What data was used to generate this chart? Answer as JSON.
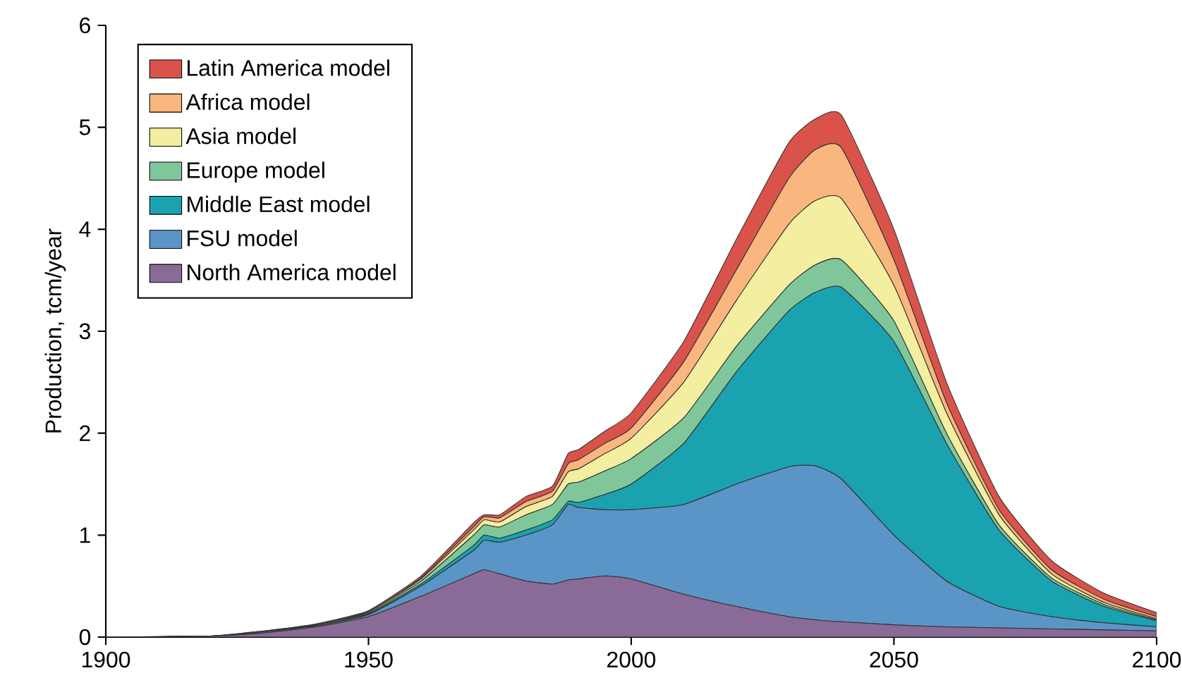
{
  "chart_data": {
    "type": "area",
    "stacked": true,
    "ylabel": "Production, tcm/year",
    "legend": "top left",
    "x": [
      1900,
      1920,
      1930,
      1940,
      1950,
      1960,
      1970,
      1972,
      1975,
      1980,
      1985,
      1988,
      1990,
      1995,
      2000,
      2010,
      2020,
      2030,
      2035,
      2040,
      2050,
      2060,
      2070,
      2080,
      2090,
      2100
    ],
    "xlim": [
      1900,
      2100
    ],
    "xticks": [
      1900,
      1950,
      2000,
      2050,
      2100
    ],
    "ylim": [
      0,
      6
    ],
    "yticks": [
      0,
      1,
      2,
      3,
      4,
      5,
      6
    ],
    "series": [
      {
        "name": "North America model",
        "color": "#8a6a96",
        "values": [
          0,
          0.01,
          0.04,
          0.1,
          0.2,
          0.4,
          0.62,
          0.66,
          0.62,
          0.55,
          0.52,
          0.56,
          0.57,
          0.6,
          0.57,
          0.42,
          0.3,
          0.2,
          0.17,
          0.15,
          0.12,
          0.1,
          0.09,
          0.08,
          0.07,
          0.06
        ]
      },
      {
        "name": "FSU model",
        "color": "#5b95c8",
        "values": [
          0,
          0,
          0.01,
          0.01,
          0.02,
          0.1,
          0.23,
          0.29,
          0.31,
          0.45,
          0.58,
          0.74,
          0.7,
          0.65,
          0.68,
          0.88,
          1.2,
          1.47,
          1.51,
          1.4,
          0.88,
          0.45,
          0.21,
          0.12,
          0.07,
          0.04
        ]
      },
      {
        "name": "Middle East model",
        "color": "#1aa2b0",
        "values": [
          0,
          0,
          0,
          0,
          0.01,
          0.02,
          0.05,
          0.05,
          0.04,
          0.05,
          0.05,
          0.03,
          0.05,
          0.15,
          0.25,
          0.6,
          1.1,
          1.53,
          1.7,
          1.88,
          1.9,
          1.35,
          0.75,
          0.35,
          0.16,
          0.06
        ]
      },
      {
        "name": "Europe model",
        "color": "#7fc79a",
        "values": [
          0,
          0,
          0,
          0.01,
          0.01,
          0.03,
          0.1,
          0.1,
          0.11,
          0.15,
          0.15,
          0.17,
          0.2,
          0.23,
          0.25,
          0.25,
          0.25,
          0.25,
          0.27,
          0.27,
          0.2,
          0.1,
          0.05,
          0.03,
          0.02,
          0.01
        ]
      },
      {
        "name": "Asia model",
        "color": "#f3eea0",
        "values": [
          0,
          0,
          0,
          0,
          0.01,
          0.02,
          0.05,
          0.05,
          0.05,
          0.08,
          0.08,
          0.12,
          0.13,
          0.17,
          0.2,
          0.35,
          0.45,
          0.6,
          0.63,
          0.6,
          0.35,
          0.2,
          0.1,
          0.04,
          0.02,
          0.01
        ]
      },
      {
        "name": "Africa model",
        "color": "#f9b67e",
        "values": [
          0,
          0,
          0.01,
          0,
          0,
          0.01,
          0.03,
          0.03,
          0.04,
          0.05,
          0.05,
          0.08,
          0.09,
          0.1,
          0.1,
          0.2,
          0.3,
          0.45,
          0.5,
          0.5,
          0.25,
          0.1,
          0.05,
          0.04,
          0.03,
          0.02
        ]
      },
      {
        "name": "Latin America model",
        "color": "#d9534a",
        "values": [
          0,
          0,
          0,
          0.01,
          0.01,
          0.02,
          0.04,
          0.02,
          0.03,
          0.05,
          0.05,
          0.1,
          0.1,
          0.12,
          0.15,
          0.2,
          0.3,
          0.35,
          0.3,
          0.32,
          0.3,
          0.2,
          0.13,
          0.09,
          0.06,
          0.04
        ]
      }
    ]
  }
}
